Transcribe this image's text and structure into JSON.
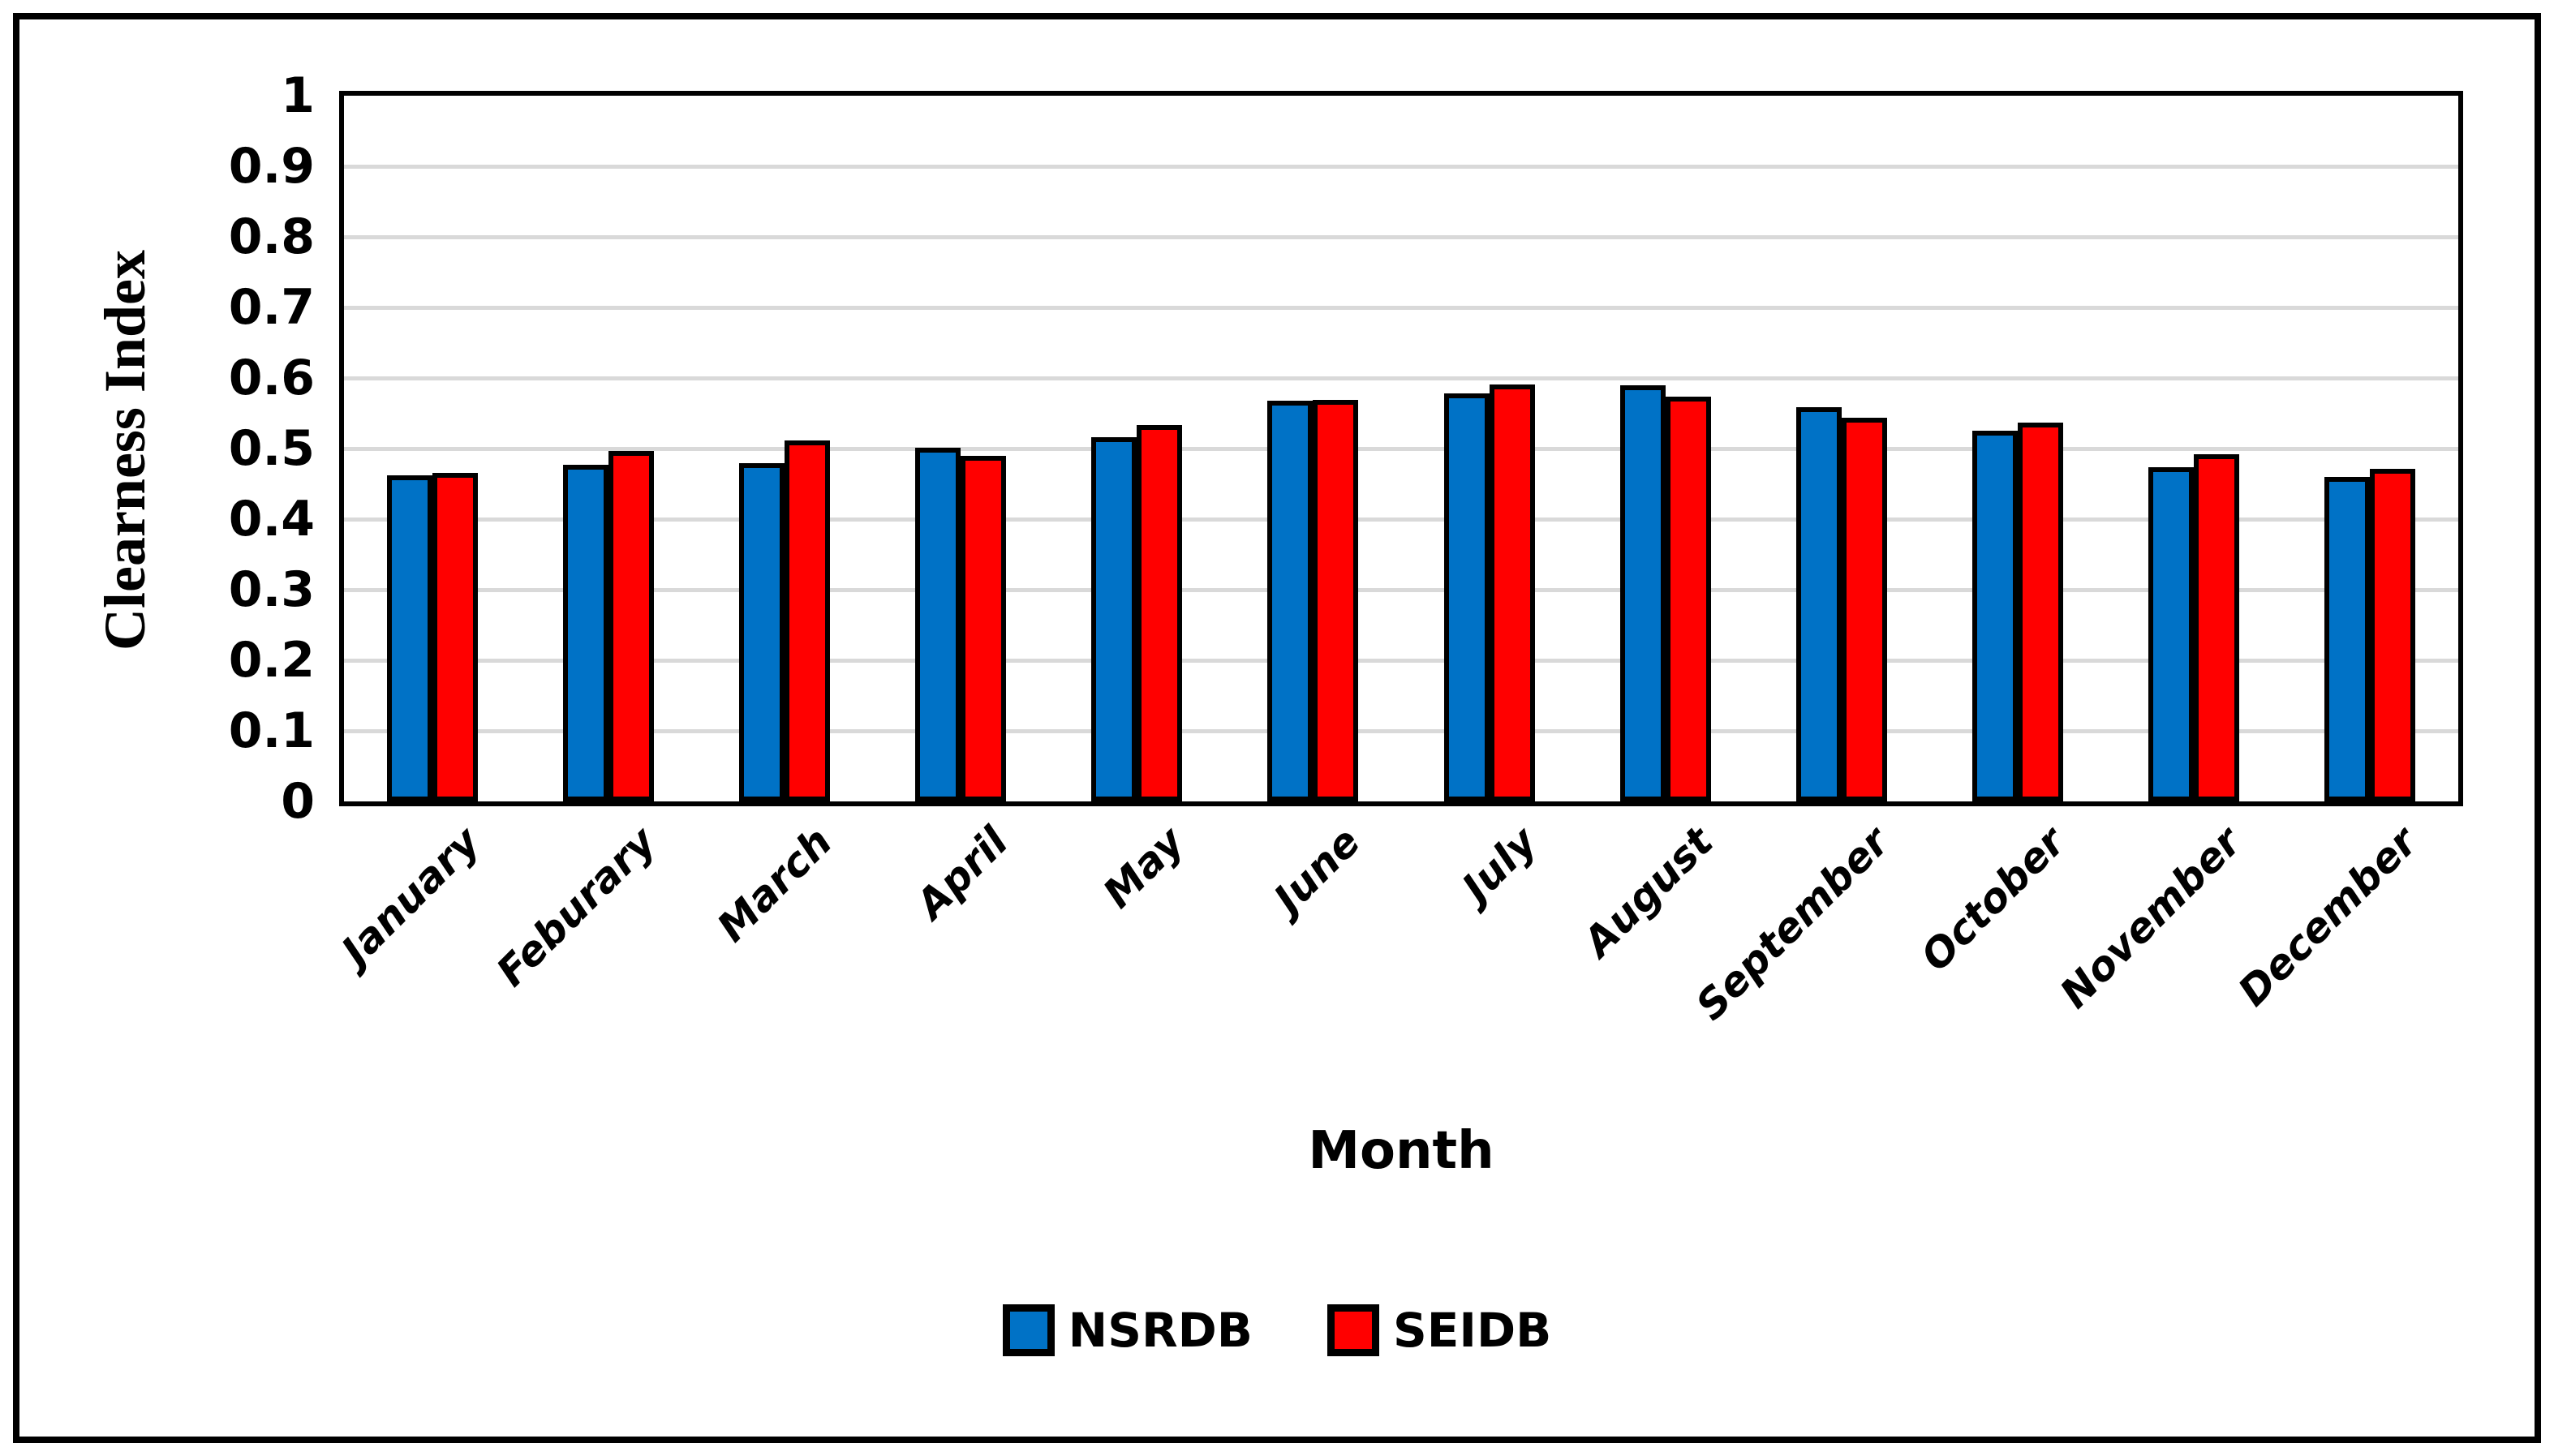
{
  "chart_data": {
    "type": "bar",
    "title": "",
    "xlabel": "Month",
    "ylabel": "Clearness Index",
    "categories": [
      "January",
      "Feburary",
      "March",
      "April",
      "May",
      "June",
      "July",
      "August",
      "September",
      "October",
      "November",
      "December"
    ],
    "series": [
      {
        "name": "NSRDB",
        "color": "#0072C6",
        "values": [
          0.462,
          0.477,
          0.479,
          0.501,
          0.516,
          0.568,
          0.578,
          0.59,
          0.559,
          0.525,
          0.474,
          0.46
        ]
      },
      {
        "name": "SEIDB",
        "color": "#FF0000",
        "values": [
          0.466,
          0.496,
          0.512,
          0.49,
          0.533,
          0.569,
          0.591,
          0.574,
          0.544,
          0.537,
          0.492,
          0.471
        ]
      }
    ],
    "ylim": [
      0,
      1
    ],
    "ytick_step": 0.1,
    "ytick_labels": [
      "0",
      "0.1",
      "0.2",
      "0.3",
      "0.4",
      "0.5",
      "0.6",
      "0.7",
      "0.8",
      "0.9",
      "1"
    ],
    "grid": true,
    "gridline_color": "#D9D9D9",
    "bar_border_color": "#000000",
    "axis_color": "#000000",
    "background_color": "#FFFFFF",
    "legend_position": "bottom"
  }
}
